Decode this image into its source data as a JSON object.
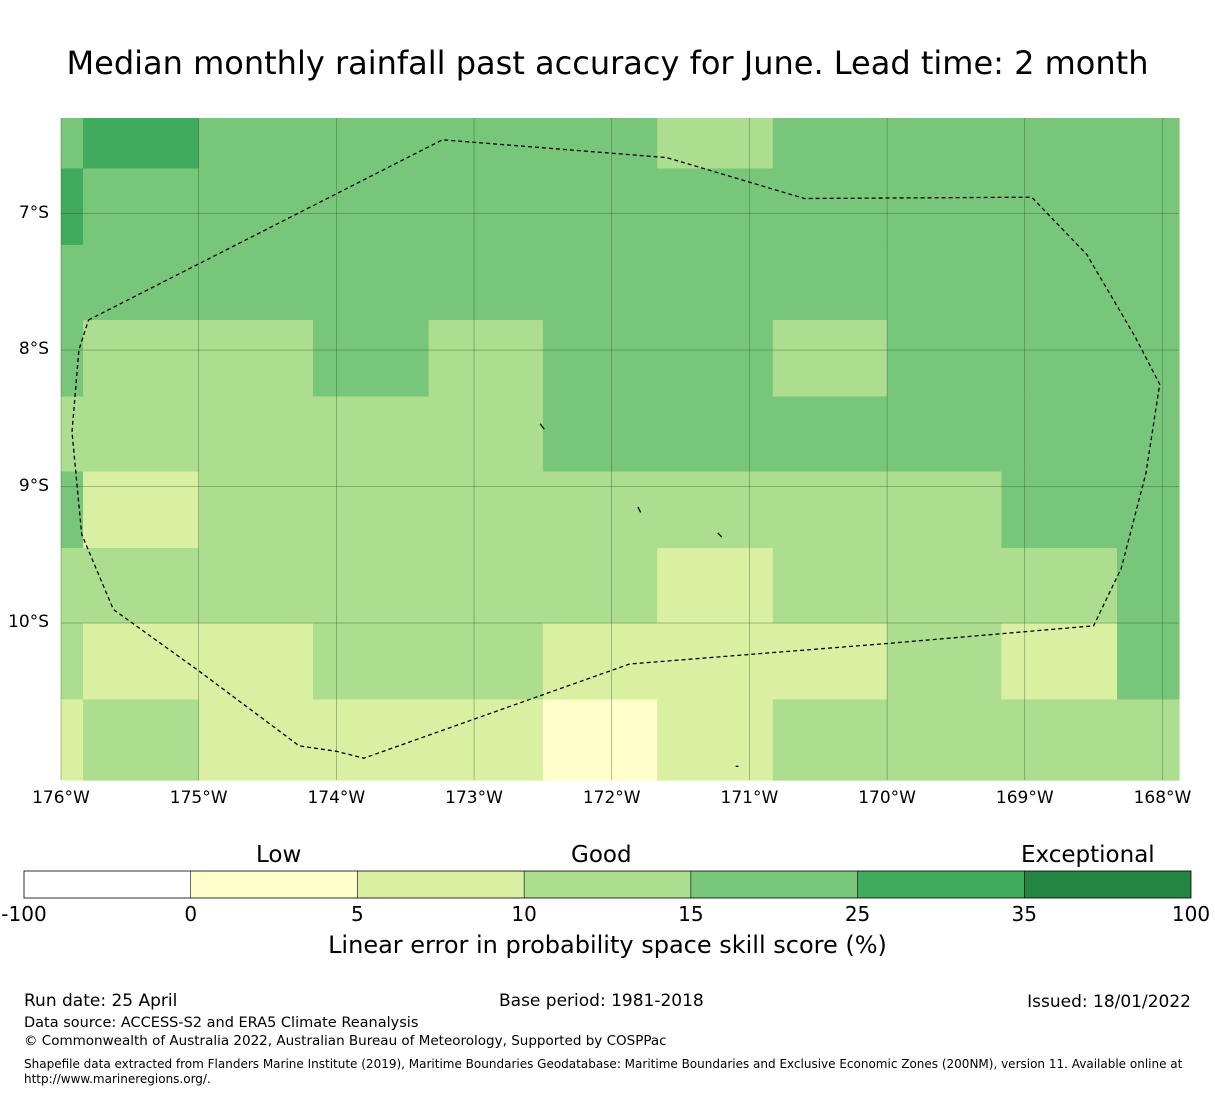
{
  "title": "Median monthly rainfall past accuracy for June. Lead time: 2 month",
  "map": {
    "lon_range": [
      -176,
      -167.88
    ],
    "lat_range": [
      -11.15,
      -6.3
    ],
    "lat_ticks": [
      {
        "value": -7,
        "label": "7°S"
      },
      {
        "value": -8,
        "label": "8°S"
      },
      {
        "value": -9,
        "label": "9°S"
      },
      {
        "value": -10,
        "label": "10°S"
      }
    ],
    "lon_ticks": [
      {
        "value": -176,
        "label": "176°W"
      },
      {
        "value": -175,
        "label": "175°W"
      },
      {
        "value": -174,
        "label": "174°W"
      },
      {
        "value": -173,
        "label": "173°W"
      },
      {
        "value": -172,
        "label": "172°W"
      },
      {
        "value": -171,
        "label": "171°W"
      },
      {
        "value": -170,
        "label": "170°W"
      },
      {
        "value": -169,
        "label": "169°W"
      },
      {
        "value": -168,
        "label": "168°W"
      }
    ],
    "grid_lon_edges": [
      -176,
      -175.84,
      -175,
      -174.17,
      -173.33,
      -172.5,
      -171.67,
      -170.83,
      -170,
      -169.17,
      -168.33,
      -167.88
    ],
    "grid_lat_edges": [
      -6.3,
      -6.67,
      -7.23,
      -7.78,
      -8.34,
      -8.89,
      -9.45,
      -10.0,
      -10.56,
      -11.15
    ],
    "skill_grid": [
      [
        3,
        4,
        3,
        3,
        3,
        3,
        2,
        3,
        3,
        3,
        3
      ],
      [
        4,
        3,
        3,
        3,
        3,
        3,
        3,
        3,
        3,
        3,
        3
      ],
      [
        3,
        3,
        3,
        3,
        3,
        3,
        3,
        3,
        3,
        3,
        3
      ],
      [
        3,
        2,
        2,
        3,
        2,
        3,
        3,
        2,
        3,
        3,
        3
      ],
      [
        2,
        2,
        2,
        2,
        2,
        3,
        3,
        3,
        3,
        3,
        3
      ],
      [
        3,
        1,
        2,
        2,
        2,
        2,
        2,
        2,
        2,
        3,
        3
      ],
      [
        2,
        2,
        2,
        2,
        2,
        2,
        1,
        2,
        2,
        2,
        3
      ],
      [
        2,
        1,
        1,
        2,
        2,
        1,
        1,
        1,
        2,
        1,
        3
      ],
      [
        1,
        2,
        1,
        1,
        1,
        0,
        1,
        2,
        2,
        2,
        2
      ]
    ],
    "eez_boundary": [
      [
        -175.8,
        -7.78
      ],
      [
        -173.23,
        -6.46
      ],
      [
        -171.6,
        -6.59
      ],
      [
        -170.6,
        -6.89
      ],
      [
        -168.95,
        -6.88
      ],
      [
        -168.55,
        -7.3
      ],
      [
        -168.2,
        -7.9
      ],
      [
        -168.02,
        -8.25
      ],
      [
        -168.12,
        -8.9
      ],
      [
        -168.3,
        -9.6
      ],
      [
        -168.5,
        -10.02
      ],
      [
        -170.0,
        -10.15
      ],
      [
        -171.87,
        -10.3
      ],
      [
        -173.8,
        -10.99
      ],
      [
        -174.0,
        -10.94
      ],
      [
        -174.27,
        -10.9
      ],
      [
        -175.0,
        -10.35
      ],
      [
        -175.62,
        -9.9
      ],
      [
        -175.85,
        -9.35
      ],
      [
        -175.92,
        -8.6
      ],
      [
        -175.87,
        -8.0
      ],
      [
        -175.8,
        -7.78
      ]
    ],
    "islands": [
      [
        [
          -172.52,
          -8.54
        ],
        [
          -172.49,
          -8.58
        ]
      ],
      [
        [
          -171.81,
          -9.15
        ],
        [
          -171.79,
          -9.19
        ]
      ],
      [
        [
          -171.23,
          -9.34
        ],
        [
          -171.2,
          -9.37
        ]
      ],
      [
        [
          -171.1,
          -11.05
        ],
        [
          -171.08,
          -11.05
        ]
      ]
    ]
  },
  "colorbar": {
    "bins": [
      {
        "from": "-100",
        "to": "0",
        "color": "#ffffff"
      },
      {
        "from": "0",
        "to": "5",
        "color": "#ffffcc"
      },
      {
        "from": "5",
        "to": "10",
        "color": "#d9f0a3"
      },
      {
        "from": "10",
        "to": "15",
        "color": "#addd8e"
      },
      {
        "from": "15",
        "to": "25",
        "color": "#78c679"
      },
      {
        "from": "25",
        "to": "35",
        "color": "#41ab5d"
      },
      {
        "from": "35",
        "to": "100",
        "color": "#238443"
      }
    ],
    "tick_labels": [
      "-100",
      "0",
      "5",
      "10",
      "15",
      "25",
      "35",
      "100"
    ],
    "categories": [
      "Low",
      "Good",
      "Exceptional"
    ],
    "title": "Linear error in probability space skill score (%)"
  },
  "footer": {
    "run_date": "Run date: 25 April",
    "base_period": "Base period: 1981-2018",
    "issued": "Issued: 18/01/2022",
    "data_source": "Data source: ACCESS-S2 and ERA5 Climate Reanalysis",
    "copyright": "© Commonwealth of Australia 2022, Australian Bureau of Meteorology, Supported by COSPPac",
    "shapefile_line1": "Shapefile data extracted from Flanders Marine Institute (2019), Maritime Boundaries Geodatabase: Maritime Boundaries and Exclusive Economic Zones (200NM), version 11. Available online at",
    "shapefile_line2": "http://www.marineregions.org/."
  }
}
